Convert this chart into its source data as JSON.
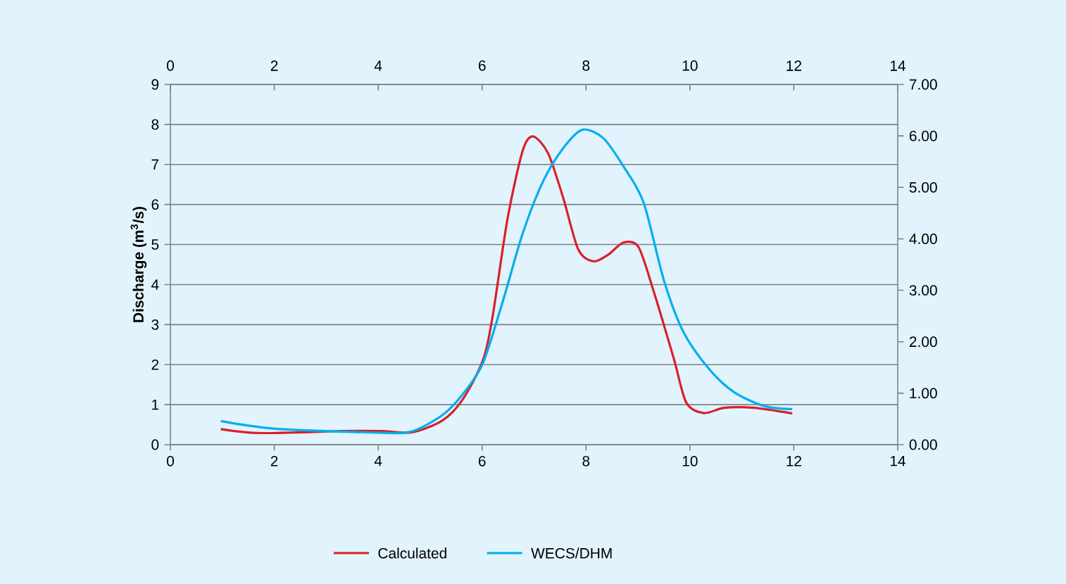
{
  "chart_data": {
    "type": "line",
    "ylabel": "Discharge (m$^{3}$/s)",
    "xlim": [
      0,
      14
    ],
    "xticks": [
      0,
      2,
      4,
      6,
      8,
      10,
      12,
      14
    ],
    "x2lim": [
      0,
      14
    ],
    "x2ticks": [
      0,
      2,
      4,
      6,
      8,
      10,
      12,
      14
    ],
    "ylim": [
      0,
      9
    ],
    "yticks": [
      0,
      1,
      2,
      3,
      4,
      5,
      6,
      7,
      8,
      9
    ],
    "y2lim": [
      0,
      7
    ],
    "y2ticks": [
      {
        "value": 0,
        "label": "0.00"
      },
      {
        "value": 1,
        "label": "1.00"
      },
      {
        "value": 2,
        "label": "2.00"
      },
      {
        "value": 3,
        "label": "3.00"
      },
      {
        "value": 4,
        "label": "4.00"
      },
      {
        "value": 5,
        "label": "5.00"
      },
      {
        "value": 6,
        "label": "6.00"
      },
      {
        "value": 7,
        "label": "7.00"
      }
    ],
    "grid": "y",
    "legend": "bottom",
    "series": [
      {
        "name": "Calculated",
        "color": "#d7202b",
        "x": [
          0.97,
          1.74,
          3.29,
          4.07,
          4.65,
          5.23,
          5.62,
          6.01,
          6.2,
          6.49,
          6.78,
          6.98,
          7.27,
          7.56,
          7.85,
          8.14,
          8.43,
          8.72,
          9.01,
          9.3,
          9.69,
          9.93,
          10.27,
          10.66,
          11.24,
          11.97
        ],
        "values": [
          0.39,
          0.29,
          0.34,
          0.34,
          0.31,
          0.6,
          1.12,
          2.09,
          3.19,
          5.65,
          7.34,
          7.7,
          7.28,
          6.17,
          4.88,
          4.58,
          4.75,
          5.05,
          4.94,
          3.84,
          2.15,
          1.05,
          0.79,
          0.92,
          0.92,
          0.78
        ]
      },
      {
        "name": "WECS/DHM",
        "color": "#00aeef",
        "axis": "y2",
        "x": [
          0.97,
          2.03,
          4.07,
          4.65,
          5.23,
          5.62,
          6.01,
          6.4,
          6.78,
          7.17,
          7.56,
          7.93,
          8.33,
          8.72,
          9.11,
          9.5,
          9.88,
          10.37,
          10.85,
          11.43,
          11.97
        ],
        "values": [
          0.46,
          0.31,
          0.23,
          0.26,
          0.57,
          0.97,
          1.57,
          2.79,
          4.1,
          5.11,
          5.76,
          6.12,
          5.96,
          5.41,
          4.7,
          3.19,
          2.18,
          1.47,
          1.02,
          0.75,
          0.69
        ]
      }
    ]
  }
}
